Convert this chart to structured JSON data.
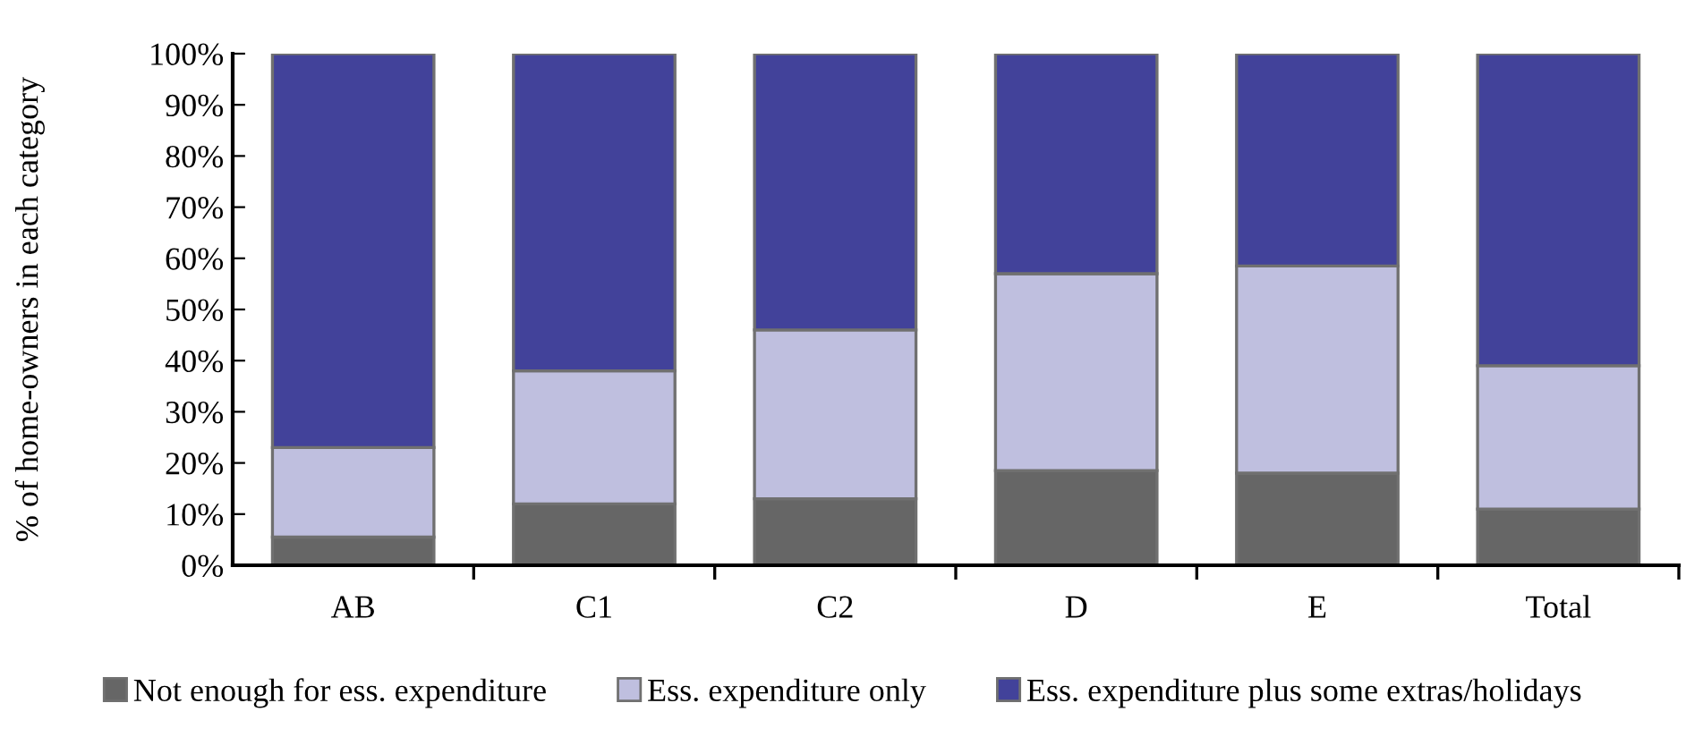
{
  "chart_data": {
    "type": "bar",
    "stacked": true,
    "ylabel": "% of home-owners in each category",
    "categories": [
      "AB",
      "C1",
      "C2",
      "D",
      "E",
      "Total"
    ],
    "series": [
      {
        "name": "Not enough for ess. expenditure",
        "color": "#666666",
        "values": [
          5.5,
          12,
          13,
          18.5,
          18,
          11
        ]
      },
      {
        "name": "Ess. expenditure only",
        "color": "#bfbfdf",
        "values": [
          17.5,
          26,
          33,
          38.5,
          40.5,
          28
        ]
      },
      {
        "name": "Ess. expenditure plus some extras/holidays",
        "color": "#42429a",
        "values": [
          77,
          62,
          54,
          43,
          41.5,
          61
        ]
      }
    ],
    "ylim": [
      0,
      100
    ],
    "yticks": [
      {
        "value": 0,
        "label": "0%"
      },
      {
        "value": 10,
        "label": "10%"
      },
      {
        "value": 20,
        "label": "20%"
      },
      {
        "value": 30,
        "label": "30%"
      },
      {
        "value": 40,
        "label": "40%"
      },
      {
        "value": 50,
        "label": "50%"
      },
      {
        "value": 60,
        "label": "60%"
      },
      {
        "value": 70,
        "label": "70%"
      },
      {
        "value": 80,
        "label": "80%"
      },
      {
        "value": 90,
        "label": "90%"
      },
      {
        "value": 100,
        "label": "100%"
      }
    ],
    "grid": false,
    "legend": "bottom"
  }
}
